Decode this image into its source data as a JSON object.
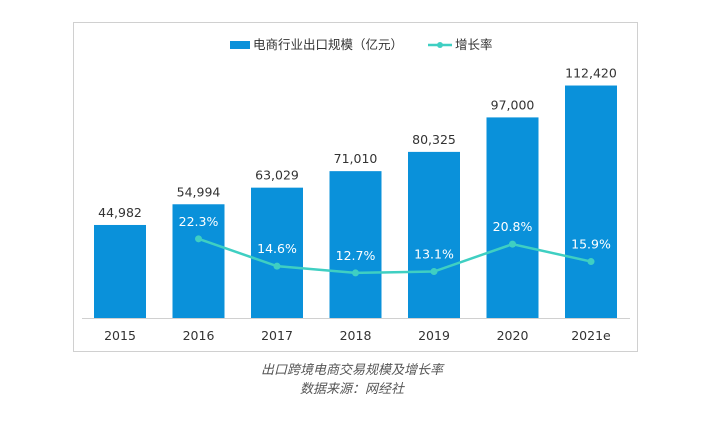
{
  "chart_data": {
    "type": "bar+line",
    "categories": [
      "2015",
      "2016",
      "2017",
      "2018",
      "2019",
      "2020",
      "2021e"
    ],
    "series": [
      {
        "name": "电商行业出口规模（亿元）",
        "type": "bar",
        "color": "#0a91da",
        "values": [
          44982,
          54994,
          63029,
          71010,
          80325,
          97000,
          112420
        ],
        "labels": [
          "44,982",
          "54,994",
          "63,029",
          "71,010",
          "80,325",
          "97,000",
          "112,420"
        ]
      },
      {
        "name": "增长率",
        "type": "line",
        "color": "#3fcfc2",
        "values": [
          null,
          22.3,
          14.6,
          12.7,
          13.1,
          20.8,
          15.9
        ],
        "labels": [
          "",
          "22.3%",
          "14.6%",
          "12.7%",
          "13.1%",
          "20.8%",
          "15.9%"
        ]
      }
    ],
    "legend_position": "top",
    "grid": false
  },
  "caption": {
    "title": "出口跨境电商交易规模及增长率",
    "source": "数据来源：网经社"
  }
}
